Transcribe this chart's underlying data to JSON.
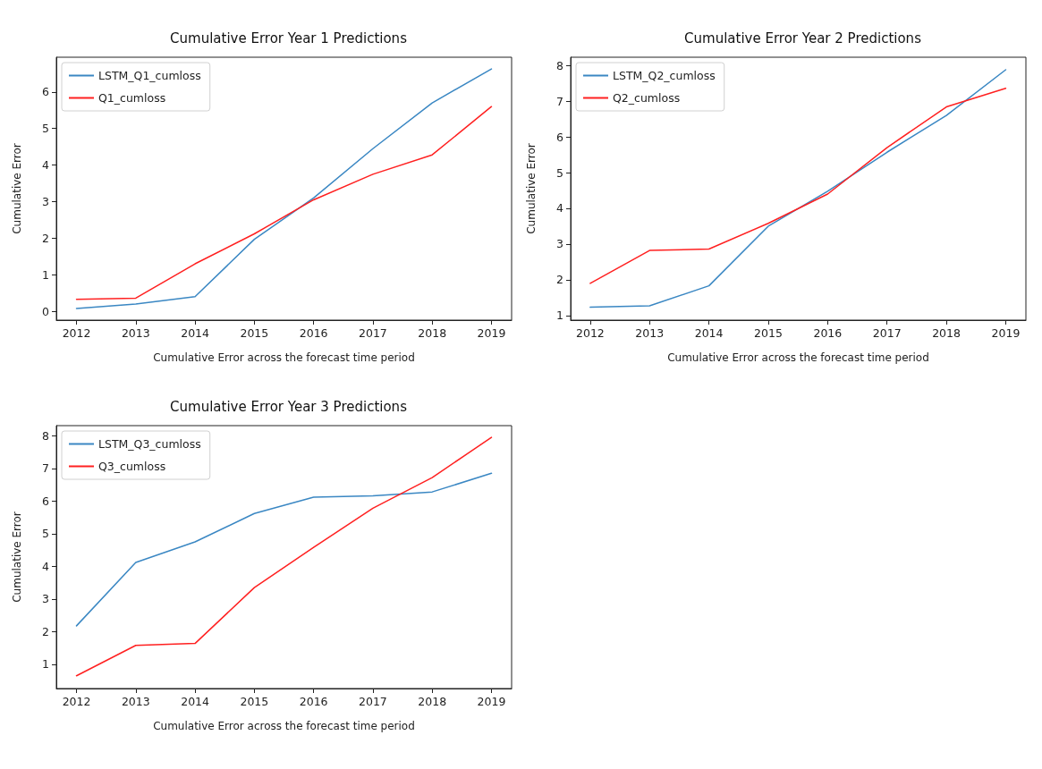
{
  "chart_data": [
    {
      "type": "line",
      "title": "Cumulative Error Year 1 Predictions",
      "xlabel": "Cumulative Error across the forecast time period",
      "ylabel": "Cumulative Error",
      "x": [
        2012,
        2013,
        2014,
        2015,
        2016,
        2017,
        2018,
        2019
      ],
      "series": [
        {
          "name": "LSTM_Q1_cumloss",
          "color": "#3a87c3",
          "values": [
            0.08,
            0.2,
            0.4,
            1.97,
            3.1,
            4.45,
            5.7,
            6.63
          ]
        },
        {
          "name": "Q1_cumloss",
          "color": "#ff2020",
          "values": [
            0.33,
            0.36,
            1.3,
            2.12,
            3.05,
            3.75,
            4.28,
            5.6
          ]
        }
      ],
      "xlim": [
        2011.66,
        2019.34
      ],
      "xticks": [
        2012,
        2013,
        2014,
        2015,
        2016,
        2017,
        2018,
        2019
      ],
      "ylim": [
        -0.24,
        6.95
      ],
      "yticks": [
        0,
        1,
        2,
        3,
        4,
        5,
        6
      ],
      "legend": "top left",
      "grid": false
    },
    {
      "type": "line",
      "title": "Cumulative Error Year 2 Predictions",
      "xlabel": "Cumulative Error across the forecast time period",
      "ylabel": "Cumulative Error",
      "x": [
        2012,
        2013,
        2014,
        2015,
        2016,
        2017,
        2018,
        2019
      ],
      "series": [
        {
          "name": "LSTM_Q2_cumloss",
          "color": "#3a87c3",
          "values": [
            1.23,
            1.27,
            1.83,
            3.5,
            4.48,
            5.57,
            6.6,
            7.88
          ]
        },
        {
          "name": "Q2_cumloss",
          "color": "#ff2020",
          "values": [
            1.9,
            2.82,
            2.86,
            3.58,
            4.4,
            5.7,
            6.84,
            7.36
          ]
        }
      ],
      "xlim": [
        2011.67,
        2019.34
      ],
      "xticks": [
        2012,
        2013,
        2014,
        2015,
        2016,
        2017,
        2018,
        2019
      ],
      "ylim": [
        0.87,
        8.23
      ],
      "yticks": [
        1,
        2,
        3,
        4,
        5,
        6,
        7,
        8
      ],
      "legend": "top left",
      "grid": false
    },
    {
      "type": "line",
      "title": "Cumulative Error Year 3 Predictions",
      "xlabel": "Cumulative Error across the forecast time period",
      "ylabel": "Cumulative Error",
      "x": [
        2012,
        2013,
        2014,
        2015,
        2016,
        2017,
        2018,
        2019
      ],
      "series": [
        {
          "name": "LSTM_Q3_cumloss",
          "color": "#3a87c3",
          "values": [
            2.18,
            4.12,
            4.75,
            5.62,
            6.12,
            6.16,
            6.28,
            6.85
          ]
        },
        {
          "name": "Q3_cumloss",
          "color": "#ff2020",
          "values": [
            0.65,
            1.58,
            1.64,
            3.35,
            4.58,
            5.78,
            6.72,
            7.95
          ]
        }
      ],
      "xlim": [
        2011.66,
        2019.34
      ],
      "xticks": [
        2012,
        2013,
        2014,
        2015,
        2016,
        2017,
        2018,
        2019
      ],
      "ylim": [
        0.26,
        8.31
      ],
      "yticks": [
        1,
        2,
        3,
        4,
        5,
        6,
        7,
        8
      ],
      "legend": "top left",
      "grid": false
    }
  ]
}
